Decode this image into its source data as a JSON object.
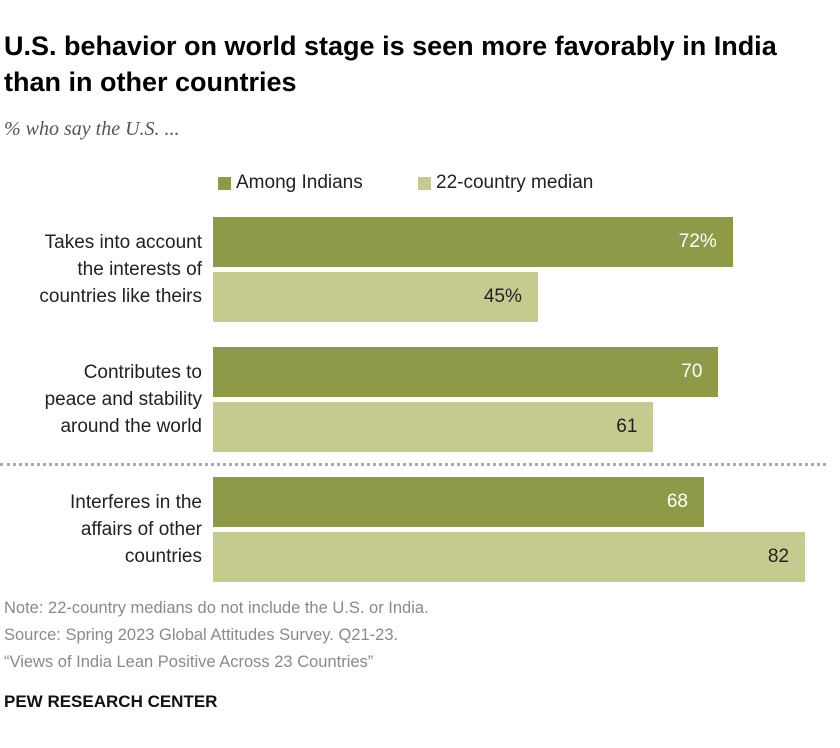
{
  "chart_data": {
    "type": "hbar",
    "title": "U.S. behavior on world stage is seen more favorably in India than in other countries",
    "subtitle": "% who say the U.S. ...",
    "categories": [
      "Takes into account\nthe interests of\ncountries like theirs",
      "Contributes to\npeace and stability\naround the world",
      "Interferes in the\naffairs of other\ncountries"
    ],
    "series": [
      {
        "name": "Among Indians",
        "color": "#8f9a48",
        "values": [
          72,
          70,
          68
        ],
        "value_labels": [
          "72%",
          "70",
          "68"
        ]
      },
      {
        "name": "22-country median",
        "color": "#c5cb8e",
        "values": [
          45,
          61,
          82
        ],
        "value_labels": [
          "45%",
          "61",
          "82"
        ]
      }
    ],
    "note": "Note: 22-country medians do not include the U.S. or India.",
    "source": "Source: Spring 2023 Global Attitudes Survey. Q21-23.",
    "report": "“Views of India Lean Positive Across 23 Countries”",
    "footer": "PEW RESEARCH CENTER"
  }
}
